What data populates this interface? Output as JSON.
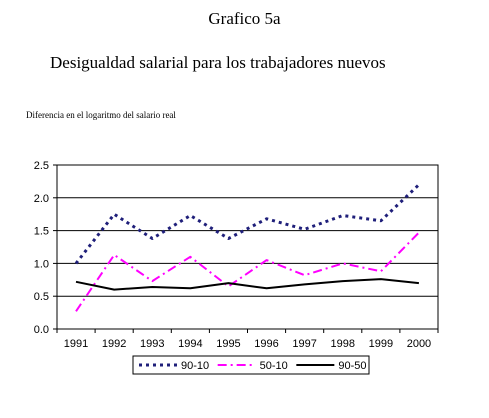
{
  "figure_label": "Grafico 5a",
  "colors": {
    "s9010": "#1f1f7a",
    "s5010": "#ff00ff",
    "s9050": "#000000"
  },
  "chart_data": {
    "type": "line",
    "title": "Desigualdad salarial para los trabajadores nuevos",
    "ylabel": "Diferencia en el logaritmo del salario real",
    "xlabel": "",
    "x": [
      "1991",
      "1992",
      "1993",
      "1994",
      "1995",
      "1996",
      "1997",
      "1998",
      "1999",
      "2000"
    ],
    "ylim": [
      0,
      2.5
    ],
    "yticks": [
      "0.0",
      "0.5",
      "1.0",
      "1.5",
      "2.0",
      "2.5"
    ],
    "grid": true,
    "legend": "bottom",
    "series": [
      {
        "name": "90-10",
        "color": "#1f1f7a",
        "style": "dotted",
        "values": [
          1.0,
          1.75,
          1.38,
          1.73,
          1.38,
          1.68,
          1.52,
          1.73,
          1.65,
          2.2
        ]
      },
      {
        "name": "50-10",
        "color": "#ff00ff",
        "style": "dashdot",
        "values": [
          0.27,
          1.13,
          0.73,
          1.1,
          0.65,
          1.05,
          0.82,
          1.0,
          0.88,
          1.47
        ]
      },
      {
        "name": "90-50",
        "color": "#000000",
        "style": "solid",
        "values": [
          0.72,
          0.6,
          0.64,
          0.62,
          0.7,
          0.62,
          0.68,
          0.73,
          0.76,
          0.7
        ]
      }
    ]
  }
}
